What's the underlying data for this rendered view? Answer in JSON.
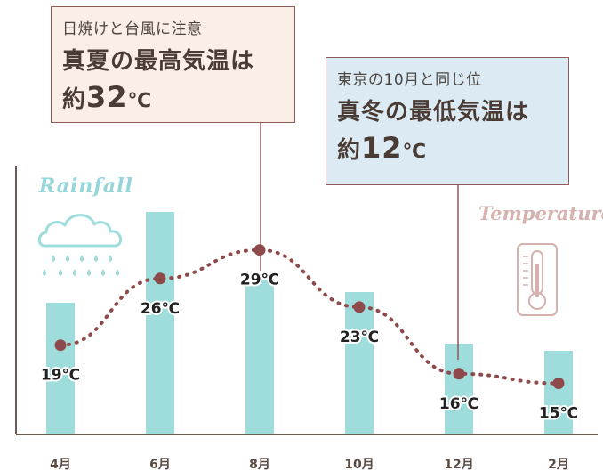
{
  "callouts": {
    "summer": {
      "subtitle": "日焼けと台風に注意",
      "line1": "真夏の最高気温は",
      "prefix": "約",
      "value": "32",
      "unit": "℃"
    },
    "winter": {
      "subtitle": "東京の10月と同じ位",
      "line1": "真冬の最低気温は",
      "prefix": "約",
      "value": "12",
      "unit": "℃"
    }
  },
  "labels": {
    "rainfall": "Rainfall",
    "temperature": "Temperature"
  },
  "colors": {
    "bar": "#9fdcdc",
    "line": "#8e4a4a",
    "axis": "#6b5a55",
    "summer_box": "#fbeee7",
    "winter_box": "#dbeaf3"
  },
  "icons": {
    "rain": "cloud-rain-icon",
    "temp": "thermometer-icon"
  },
  "chart_data": {
    "type": "bar",
    "categories": [
      "4月",
      "6月",
      "8月",
      "10月",
      "12月",
      "2月"
    ],
    "series": [
      {
        "type": "bar",
        "values": [
          148,
          250,
          178,
          160,
          102,
          94
        ]
      },
      {
        "type": "line",
        "values": [
          19,
          26,
          29,
          23,
          16,
          15
        ],
        "value_labels": [
          "19℃",
          "26℃",
          "29℃",
          "23℃",
          "16℃",
          "15℃"
        ]
      }
    ]
  }
}
